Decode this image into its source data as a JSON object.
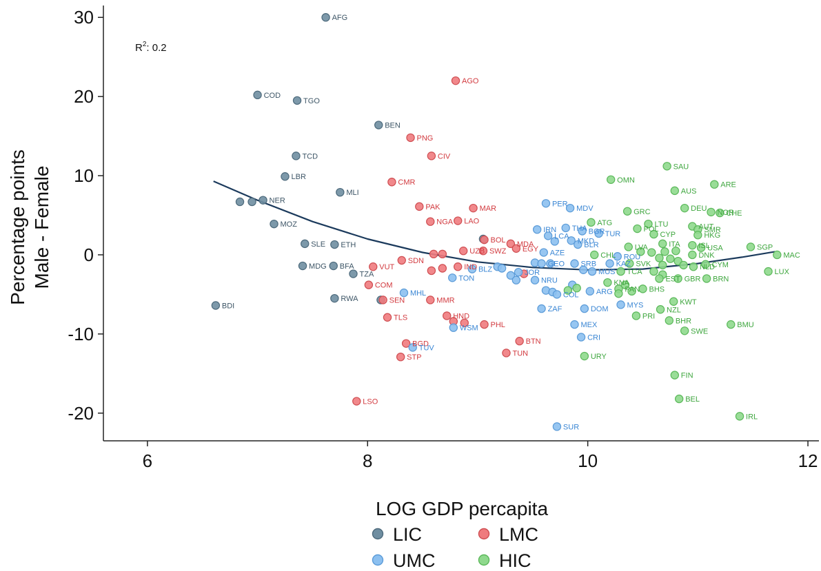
{
  "chart_data": {
    "type": "scatter",
    "xlabel": "LOG GDP percapita",
    "ylabel_lines": [
      "Percentage points",
      "Male - Female"
    ],
    "xlim": [
      5.6,
      12.1
    ],
    "ylim": [
      -23.5,
      31.5
    ],
    "xticks": [
      6,
      8,
      10,
      12
    ],
    "yticks": [
      -20,
      -10,
      0,
      10,
      20,
      30
    ],
    "xtick_labels": [
      "6",
      "8",
      "10",
      "12"
    ],
    "ytick_labels": [
      "-20",
      "-10",
      "0",
      "10",
      "20",
      "30"
    ],
    "annotation": {
      "prefix": "R",
      "sup": "2",
      "suffix": ": 0.2"
    },
    "legend": {
      "placement": "bottom",
      "entries": [
        {
          "group": "LIC",
          "label": "LIC"
        },
        {
          "group": "LMC",
          "label": "LMC"
        },
        {
          "group": "UMC",
          "label": "UMC"
        },
        {
          "group": "HIC",
          "label": "HIC"
        }
      ]
    },
    "groups": {
      "LIC": {
        "fill": "#6f8ea1",
        "stroke": "#4d6a7c",
        "text": "#3d5566"
      },
      "LMC": {
        "fill": "#ef7b7e",
        "stroke": "#cf4e52",
        "text": "#d23a3f"
      },
      "UMC": {
        "fill": "#8cc0f0",
        "stroke": "#5b9bd8",
        "text": "#3a86d4"
      },
      "HIC": {
        "fill": "#8fd98d",
        "stroke": "#5bb85a",
        "text": "#3ea63e"
      }
    },
    "fit_line": {
      "color": "#1b3a5c",
      "x": [
        6.6,
        7.0,
        7.5,
        8.0,
        8.5,
        9.0,
        9.5,
        10.0,
        10.5,
        11.0,
        11.4,
        11.7
      ],
      "y": [
        9.3,
        6.9,
        4.2,
        2.0,
        0.3,
        -0.9,
        -1.6,
        -1.9,
        -1.8,
        -1.1,
        -0.3,
        0.4
      ]
    },
    "points": [
      {
        "label": "AFG",
        "x": 7.62,
        "y": 30.0,
        "group": "LIC"
      },
      {
        "label": "COD",
        "x": 7.0,
        "y": 20.2,
        "group": "LIC"
      },
      {
        "label": "TGO",
        "x": 7.36,
        "y": 19.5,
        "group": "LIC"
      },
      {
        "label": "BEN",
        "x": 8.1,
        "y": 16.4,
        "group": "LIC"
      },
      {
        "label": "TCD",
        "x": 7.35,
        "y": 12.5,
        "group": "LIC"
      },
      {
        "label": "LBR",
        "x": 7.25,
        "y": 9.9,
        "group": "LIC"
      },
      {
        "label": "MLI",
        "x": 7.75,
        "y": 7.9,
        "group": "LIC"
      },
      {
        "label": "NER",
        "x": 7.05,
        "y": 6.9,
        "group": "LIC"
      },
      {
        "label": "",
        "x": 6.84,
        "y": 6.7,
        "group": "LIC"
      },
      {
        "label": "",
        "x": 6.95,
        "y": 6.7,
        "group": "LIC"
      },
      {
        "label": "MOZ",
        "x": 7.15,
        "y": 3.9,
        "group": "LIC"
      },
      {
        "label": "SLE",
        "x": 7.43,
        "y": 1.4,
        "group": "LIC"
      },
      {
        "label": "ETH",
        "x": 7.7,
        "y": 1.3,
        "group": "LIC"
      },
      {
        "label": "MDG",
        "x": 7.41,
        "y": -1.4,
        "group": "LIC"
      },
      {
        "label": "BFA",
        "x": 7.69,
        "y": -1.4,
        "group": "LIC"
      },
      {
        "label": "TZA",
        "x": 7.87,
        "y": -2.4,
        "group": "LIC"
      },
      {
        "label": "RWA",
        "x": 7.7,
        "y": -5.5,
        "group": "LIC"
      },
      {
        "label": "BDI",
        "x": 6.62,
        "y": -6.4,
        "group": "LIC"
      },
      {
        "label": "",
        "x": 8.12,
        "y": -5.7,
        "group": "LIC"
      },
      {
        "label": "",
        "x": 9.05,
        "y": 2.0,
        "group": "LIC"
      },
      {
        "label": "AGO",
        "x": 8.8,
        "y": 22.0,
        "group": "LMC"
      },
      {
        "label": "PNG",
        "x": 8.39,
        "y": 14.8,
        "group": "LMC"
      },
      {
        "label": "CIV",
        "x": 8.58,
        "y": 12.5,
        "group": "LMC"
      },
      {
        "label": "CMR",
        "x": 8.22,
        "y": 9.2,
        "group": "LMC"
      },
      {
        "label": "PAK",
        "x": 8.47,
        "y": 6.1,
        "group": "LMC"
      },
      {
        "label": "MAR",
        "x": 8.96,
        "y": 5.9,
        "group": "LMC"
      },
      {
        "label": "NGA",
        "x": 8.57,
        "y": 4.2,
        "group": "LMC"
      },
      {
        "label": "LAO",
        "x": 8.82,
        "y": 4.3,
        "group": "LMC"
      },
      {
        "label": "BOL",
        "x": 9.06,
        "y": 1.9,
        "group": "LMC"
      },
      {
        "label": "MDA",
        "x": 9.3,
        "y": 1.4,
        "group": "LMC"
      },
      {
        "label": "EGY",
        "x": 9.35,
        "y": 0.8,
        "group": "LMC"
      },
      {
        "label": "UZB",
        "x": 8.87,
        "y": 0.5,
        "group": "LMC"
      },
      {
        "label": "SWZ",
        "x": 9.05,
        "y": 0.5,
        "group": "LMC"
      },
      {
        "label": "",
        "x": 8.6,
        "y": 0.1,
        "group": "LMC"
      },
      {
        "label": "",
        "x": 8.68,
        "y": 0.1,
        "group": "LMC"
      },
      {
        "label": "SDN",
        "x": 8.31,
        "y": -0.7,
        "group": "LMC"
      },
      {
        "label": "VUT",
        "x": 8.05,
        "y": -1.5,
        "group": "LMC"
      },
      {
        "label": "IND",
        "x": 8.82,
        "y": -1.5,
        "group": "LMC"
      },
      {
        "label": "",
        "x": 8.58,
        "y": -2.0,
        "group": "LMC"
      },
      {
        "label": "",
        "x": 8.68,
        "y": -1.7,
        "group": "LMC"
      },
      {
        "label": "COM",
        "x": 8.01,
        "y": -3.8,
        "group": "LMC"
      },
      {
        "label": "SEN",
        "x": 8.14,
        "y": -5.7,
        "group": "LMC"
      },
      {
        "label": "MMR",
        "x": 8.57,
        "y": -5.7,
        "group": "LMC"
      },
      {
        "label": "TLS",
        "x": 8.18,
        "y": -7.9,
        "group": "LMC"
      },
      {
        "label": "HND",
        "x": 8.72,
        "y": -7.7,
        "group": "LMC"
      },
      {
        "label": "",
        "x": 8.78,
        "y": -8.4,
        "group": "LMC"
      },
      {
        "label": "",
        "x": 8.88,
        "y": -8.6,
        "group": "LMC"
      },
      {
        "label": "PHL",
        "x": 9.06,
        "y": -8.8,
        "group": "LMC"
      },
      {
        "label": "BGD",
        "x": 8.35,
        "y": -11.2,
        "group": "LMC"
      },
      {
        "label": "STP",
        "x": 8.3,
        "y": -12.9,
        "group": "LMC"
      },
      {
        "label": "BTN",
        "x": 9.38,
        "y": -10.9,
        "group": "LMC"
      },
      {
        "label": "TUN",
        "x": 9.26,
        "y": -12.4,
        "group": "LMC"
      },
      {
        "label": "LSO",
        "x": 7.9,
        "y": -18.5,
        "group": "LMC"
      },
      {
        "label": "",
        "x": 9.42,
        "y": -2.4,
        "group": "LMC"
      },
      {
        "label": "PER",
        "x": 9.62,
        "y": 6.5,
        "group": "UMC"
      },
      {
        "label": "MDV",
        "x": 9.84,
        "y": 5.9,
        "group": "UMC"
      },
      {
        "label": "IRN",
        "x": 9.54,
        "y": 3.2,
        "group": "UMC"
      },
      {
        "label": "THA",
        "x": 9.8,
        "y": 3.4,
        "group": "UMC"
      },
      {
        "label": "LCA",
        "x": 9.64,
        "y": 2.4,
        "group": "UMC"
      },
      {
        "label": "BGR",
        "x": 9.95,
        "y": 3.0,
        "group": "UMC"
      },
      {
        "label": "TUR",
        "x": 10.1,
        "y": 2.7,
        "group": "UMC"
      },
      {
        "label": "",
        "x": 9.7,
        "y": 1.7,
        "group": "UMC"
      },
      {
        "label": "MKD",
        "x": 9.85,
        "y": 1.8,
        "group": "UMC"
      },
      {
        "label": "BLR",
        "x": 9.91,
        "y": 1.3,
        "group": "UMC"
      },
      {
        "label": "AZE",
        "x": 9.6,
        "y": 0.3,
        "group": "UMC"
      },
      {
        "label": "",
        "x": 9.52,
        "y": -1.0,
        "group": "UMC"
      },
      {
        "label": "GEO",
        "x": 9.58,
        "y": -1.1,
        "group": "UMC"
      },
      {
        "label": "",
        "x": 9.66,
        "y": -1.1,
        "group": "UMC"
      },
      {
        "label": "SRB",
        "x": 9.88,
        "y": -1.1,
        "group": "UMC"
      },
      {
        "label": "ROU",
        "x": 10.27,
        "y": -0.2,
        "group": "UMC"
      },
      {
        "label": "KAZ",
        "x": 10.2,
        "y": -1.1,
        "group": "UMC"
      },
      {
        "label": "MUS",
        "x": 10.04,
        "y": -2.1,
        "group": "UMC"
      },
      {
        "label": "",
        "x": 9.96,
        "y": -1.9,
        "group": "UMC"
      },
      {
        "label": "BLZ",
        "x": 8.95,
        "y": -1.8,
        "group": "UMC"
      },
      {
        "label": "",
        "x": 9.18,
        "y": -1.5,
        "group": "UMC"
      },
      {
        "label": "",
        "x": 9.22,
        "y": -1.7,
        "group": "UMC"
      },
      {
        "label": "TON",
        "x": 8.77,
        "y": -2.9,
        "group": "UMC"
      },
      {
        "label": "JOR",
        "x": 9.37,
        "y": -2.2,
        "group": "UMC"
      },
      {
        "label": "",
        "x": 9.3,
        "y": -2.6,
        "group": "UMC"
      },
      {
        "label": "",
        "x": 9.35,
        "y": -3.2,
        "group": "UMC"
      },
      {
        "label": "NRU",
        "x": 9.52,
        "y": -3.2,
        "group": "UMC"
      },
      {
        "label": "MHL",
        "x": 8.33,
        "y": -4.8,
        "group": "UMC"
      },
      {
        "label": "",
        "x": 9.62,
        "y": -4.5,
        "group": "UMC"
      },
      {
        "label": "",
        "x": 9.68,
        "y": -4.7,
        "group": "UMC"
      },
      {
        "label": "COL",
        "x": 9.72,
        "y": -5.0,
        "group": "UMC"
      },
      {
        "label": "",
        "x": 9.86,
        "y": -3.8,
        "group": "UMC"
      },
      {
        "label": "ARG",
        "x": 10.02,
        "y": -4.6,
        "group": "UMC"
      },
      {
        "label": "ZAF",
        "x": 9.58,
        "y": -6.8,
        "group": "UMC"
      },
      {
        "label": "DOM",
        "x": 9.97,
        "y": -6.8,
        "group": "UMC"
      },
      {
        "label": "MYS",
        "x": 10.3,
        "y": -6.3,
        "group": "UMC"
      },
      {
        "label": "MEX",
        "x": 9.88,
        "y": -8.8,
        "group": "UMC"
      },
      {
        "label": "WSM",
        "x": 8.78,
        "y": -9.2,
        "group": "UMC"
      },
      {
        "label": "CRI",
        "x": 9.94,
        "y": -10.4,
        "group": "UMC"
      },
      {
        "label": "TUV",
        "x": 8.41,
        "y": -11.7,
        "group": "UMC"
      },
      {
        "label": "SUR",
        "x": 9.72,
        "y": -21.7,
        "group": "UMC"
      },
      {
        "label": "SAU",
        "x": 10.72,
        "y": 11.2,
        "group": "HIC"
      },
      {
        "label": "OMN",
        "x": 10.21,
        "y": 9.5,
        "group": "HIC"
      },
      {
        "label": "ARE",
        "x": 11.15,
        "y": 8.9,
        "group": "HIC"
      },
      {
        "label": "AUS",
        "x": 10.79,
        "y": 8.1,
        "group": "HIC"
      },
      {
        "label": "DEU",
        "x": 10.88,
        "y": 5.9,
        "group": "HIC"
      },
      {
        "label": "NOR",
        "x": 11.12,
        "y": 5.4,
        "group": "HIC"
      },
      {
        "label": "CHE",
        "x": 11.2,
        "y": 5.3,
        "group": "HIC"
      },
      {
        "label": "GRC",
        "x": 10.36,
        "y": 5.5,
        "group": "HIC"
      },
      {
        "label": "ATG",
        "x": 10.03,
        "y": 4.1,
        "group": "HIC"
      },
      {
        "label": "LTU",
        "x": 10.55,
        "y": 3.9,
        "group": "HIC"
      },
      {
        "label": "POL",
        "x": 10.45,
        "y": 3.3,
        "group": "HIC"
      },
      {
        "label": "AUT",
        "x": 10.95,
        "y": 3.6,
        "group": "HIC"
      },
      {
        "label": "SMR",
        "x": 11.0,
        "y": 3.2,
        "group": "HIC"
      },
      {
        "label": "CYP",
        "x": 10.6,
        "y": 2.6,
        "group": "HIC"
      },
      {
        "label": "HKG",
        "x": 11.0,
        "y": 2.5,
        "group": "HIC"
      },
      {
        "label": "LVA",
        "x": 10.37,
        "y": 1.0,
        "group": "HIC"
      },
      {
        "label": "ITA",
        "x": 10.68,
        "y": 1.4,
        "group": "HIC"
      },
      {
        "label": "ISL",
        "x": 10.95,
        "y": 1.2,
        "group": "HIC"
      },
      {
        "label": "USA",
        "x": 11.03,
        "y": 0.9,
        "group": "HIC"
      },
      {
        "label": "",
        "x": 10.48,
        "y": 0.4,
        "group": "HIC"
      },
      {
        "label": "",
        "x": 10.58,
        "y": 0.3,
        "group": "HIC"
      },
      {
        "label": "",
        "x": 10.7,
        "y": 0.4,
        "group": "HIC"
      },
      {
        "label": "",
        "x": 10.8,
        "y": 0.5,
        "group": "HIC"
      },
      {
        "label": "SGP",
        "x": 11.48,
        "y": 1.0,
        "group": "HIC"
      },
      {
        "label": "MAC",
        "x": 11.72,
        "y": 0.0,
        "group": "HIC"
      },
      {
        "label": "CHL",
        "x": 10.06,
        "y": 0.0,
        "group": "HIC"
      },
      {
        "label": "DNK",
        "x": 10.95,
        "y": 0.0,
        "group": "HIC"
      },
      {
        "label": "",
        "x": 10.65,
        "y": -0.4,
        "group": "HIC"
      },
      {
        "label": "",
        "x": 10.75,
        "y": -0.5,
        "group": "HIC"
      },
      {
        "label": "",
        "x": 10.82,
        "y": -0.8,
        "group": "HIC"
      },
      {
        "label": "SVK",
        "x": 10.38,
        "y": -1.1,
        "group": "HIC"
      },
      {
        "label": "CYM",
        "x": 11.07,
        "y": -1.2,
        "group": "HIC"
      },
      {
        "label": "",
        "x": 10.68,
        "y": -1.3,
        "group": "HIC"
      },
      {
        "label": "",
        "x": 10.87,
        "y": -1.3,
        "group": "HIC"
      },
      {
        "label": "NLD",
        "x": 10.96,
        "y": -1.5,
        "group": "HIC"
      },
      {
        "label": "TCA",
        "x": 10.3,
        "y": -2.1,
        "group": "HIC"
      },
      {
        "label": "",
        "x": 10.6,
        "y": -2.1,
        "group": "HIC"
      },
      {
        "label": "",
        "x": 10.68,
        "y": -2.5,
        "group": "HIC"
      },
      {
        "label": "EST",
        "x": 10.65,
        "y": -3.0,
        "group": "HIC"
      },
      {
        "label": "GBR",
        "x": 10.82,
        "y": -3.0,
        "group": "HIC"
      },
      {
        "label": "BRN",
        "x": 11.08,
        "y": -3.0,
        "group": "HIC"
      },
      {
        "label": "LUX",
        "x": 11.64,
        "y": -2.1,
        "group": "HIC"
      },
      {
        "label": "KNA",
        "x": 10.18,
        "y": -3.5,
        "group": "HIC"
      },
      {
        "label": "",
        "x": 10.34,
        "y": -3.8,
        "group": "HIC"
      },
      {
        "label": "PAN",
        "x": 10.28,
        "y": -4.3,
        "group": "HIC"
      },
      {
        "label": "BHS",
        "x": 10.5,
        "y": -4.3,
        "group": "HIC"
      },
      {
        "label": "",
        "x": 10.4,
        "y": -4.6,
        "group": "HIC"
      },
      {
        "label": "",
        "x": 10.28,
        "y": -4.9,
        "group": "HIC"
      },
      {
        "label": "",
        "x": 9.82,
        "y": -4.5,
        "group": "HIC"
      },
      {
        "label": "",
        "x": 9.9,
        "y": -4.2,
        "group": "HIC"
      },
      {
        "label": "KWT",
        "x": 10.78,
        "y": -5.9,
        "group": "HIC"
      },
      {
        "label": "NZL",
        "x": 10.66,
        "y": -6.9,
        "group": "HIC"
      },
      {
        "label": "PRI",
        "x": 10.44,
        "y": -7.7,
        "group": "HIC"
      },
      {
        "label": "BHR",
        "x": 10.74,
        "y": -8.3,
        "group": "HIC"
      },
      {
        "label": "SWE",
        "x": 10.88,
        "y": -9.6,
        "group": "HIC"
      },
      {
        "label": "BMU",
        "x": 11.3,
        "y": -8.8,
        "group": "HIC"
      },
      {
        "label": "URY",
        "x": 9.97,
        "y": -12.8,
        "group": "HIC"
      },
      {
        "label": "FIN",
        "x": 10.79,
        "y": -15.2,
        "group": "HIC"
      },
      {
        "label": "BEL",
        "x": 10.83,
        "y": -18.2,
        "group": "HIC"
      },
      {
        "label": "IRL",
        "x": 11.38,
        "y": -20.4,
        "group": "HIC"
      }
    ]
  }
}
